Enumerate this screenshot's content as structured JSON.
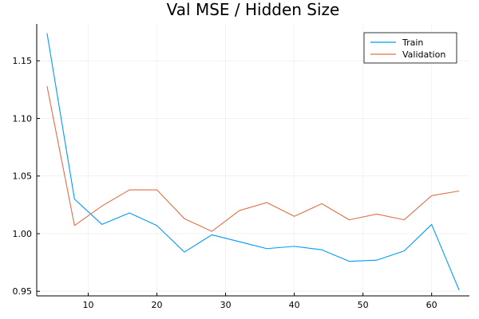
{
  "chart_data": {
    "type": "line",
    "title": "Val MSE / Hidden Size",
    "xlabel": "",
    "ylabel": "",
    "x": [
      4,
      8,
      12,
      16,
      20,
      24,
      28,
      32,
      36,
      40,
      44,
      48,
      52,
      56,
      60,
      64
    ],
    "xlim": [
      2.5,
      65.5
    ],
    "ylim": [
      0.946,
      1.182
    ],
    "xticks": [
      10,
      20,
      30,
      40,
      50,
      60
    ],
    "xtick_labels": [
      "10",
      "20",
      "30",
      "40",
      "50",
      "60"
    ],
    "yticks": [
      0.95,
      1.0,
      1.05,
      1.1,
      1.15
    ],
    "ytick_labels": [
      "0.95",
      "1.00",
      "1.05",
      "1.10",
      "1.15"
    ],
    "grid": true,
    "legend_position": "top-right",
    "series": [
      {
        "name": "Train",
        "color": "#009AFA",
        "values": [
          1.174,
          1.03,
          1.008,
          1.018,
          1.007,
          0.984,
          0.999,
          0.993,
          0.987,
          0.989,
          0.986,
          0.976,
          0.977,
          0.985,
          1.008,
          0.951
        ]
      },
      {
        "name": "Validation",
        "color": "#E36F47",
        "values": [
          1.128,
          1.007,
          1.024,
          1.038,
          1.038,
          1.013,
          1.002,
          1.02,
          1.027,
          1.015,
          1.026,
          1.012,
          1.017,
          1.012,
          1.033,
          1.037
        ]
      }
    ]
  }
}
